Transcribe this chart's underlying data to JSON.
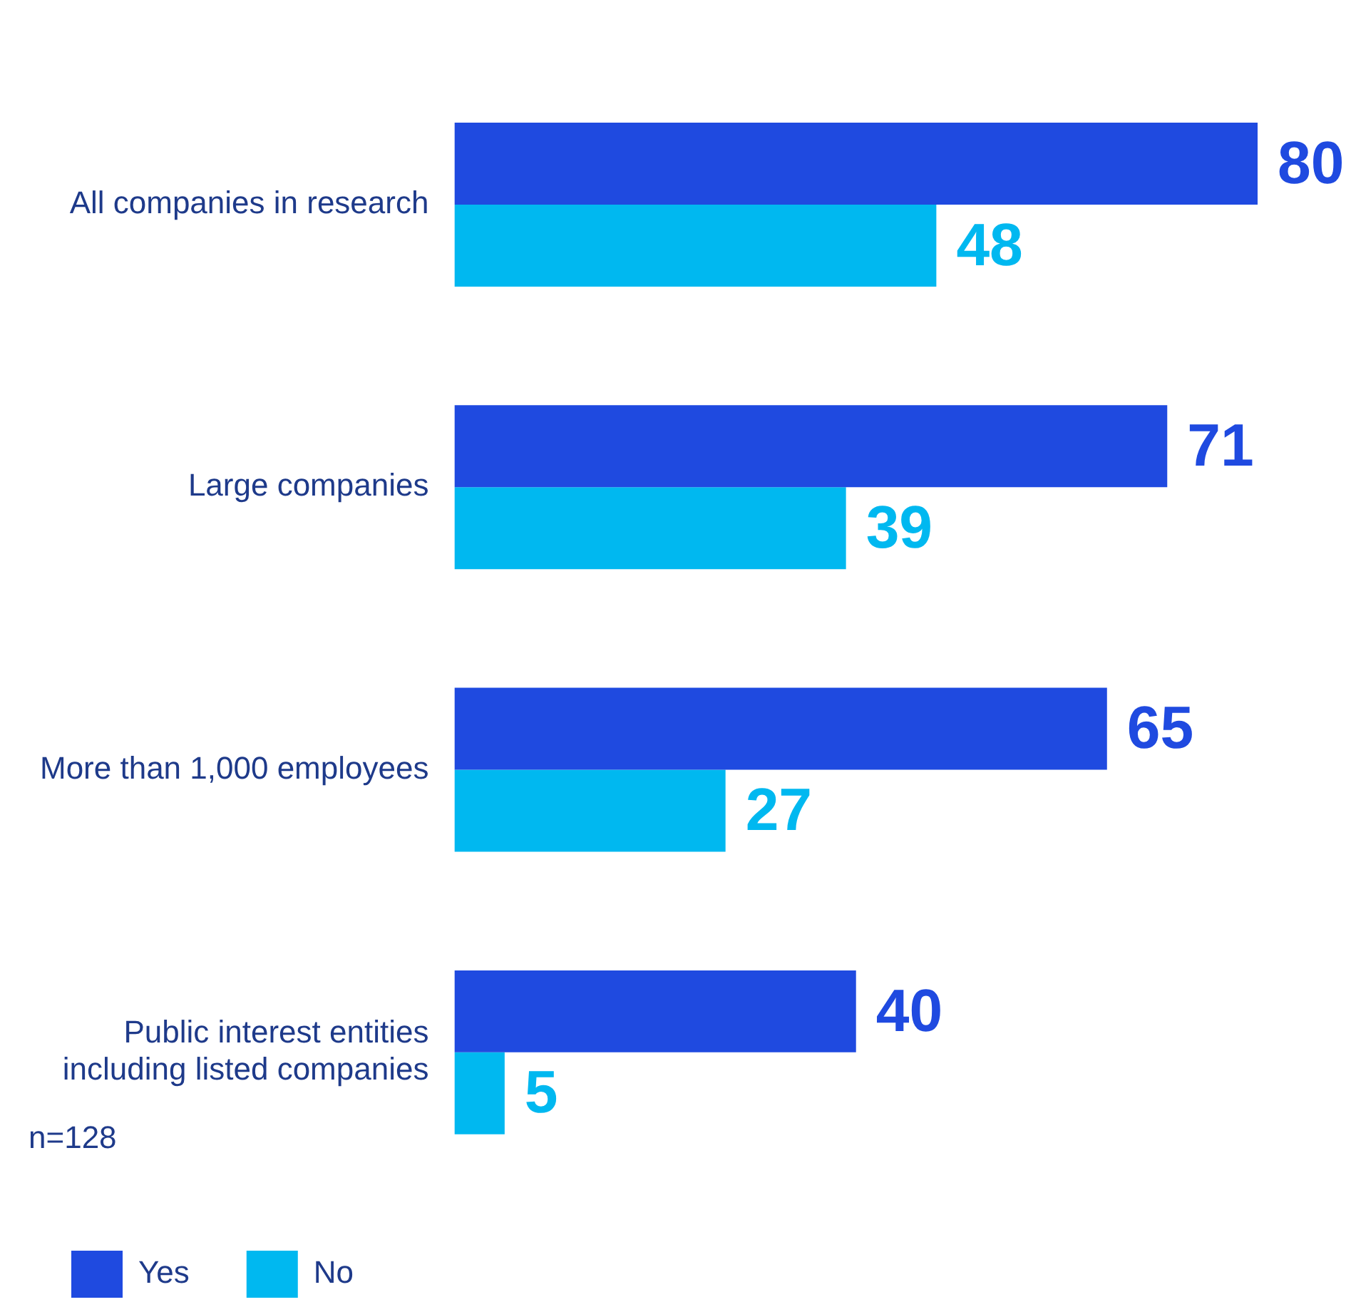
{
  "chart_data": {
    "type": "bar",
    "orientation": "horizontal",
    "categories": [
      "All companies in research",
      "Large companies",
      "More than 1,000 employees",
      "Public interest entities including listed companies"
    ],
    "series": [
      {
        "name": "Yes",
        "color": "#1f4ae0",
        "values": [
          80,
          71,
          65,
          40
        ]
      },
      {
        "name": "No",
        "color": "#00b8f0",
        "values": [
          48,
          39,
          27,
          5
        ]
      }
    ],
    "data_labels": true,
    "grid": false,
    "legend": "bottom left",
    "annotations": [
      "n=128"
    ]
  }
}
